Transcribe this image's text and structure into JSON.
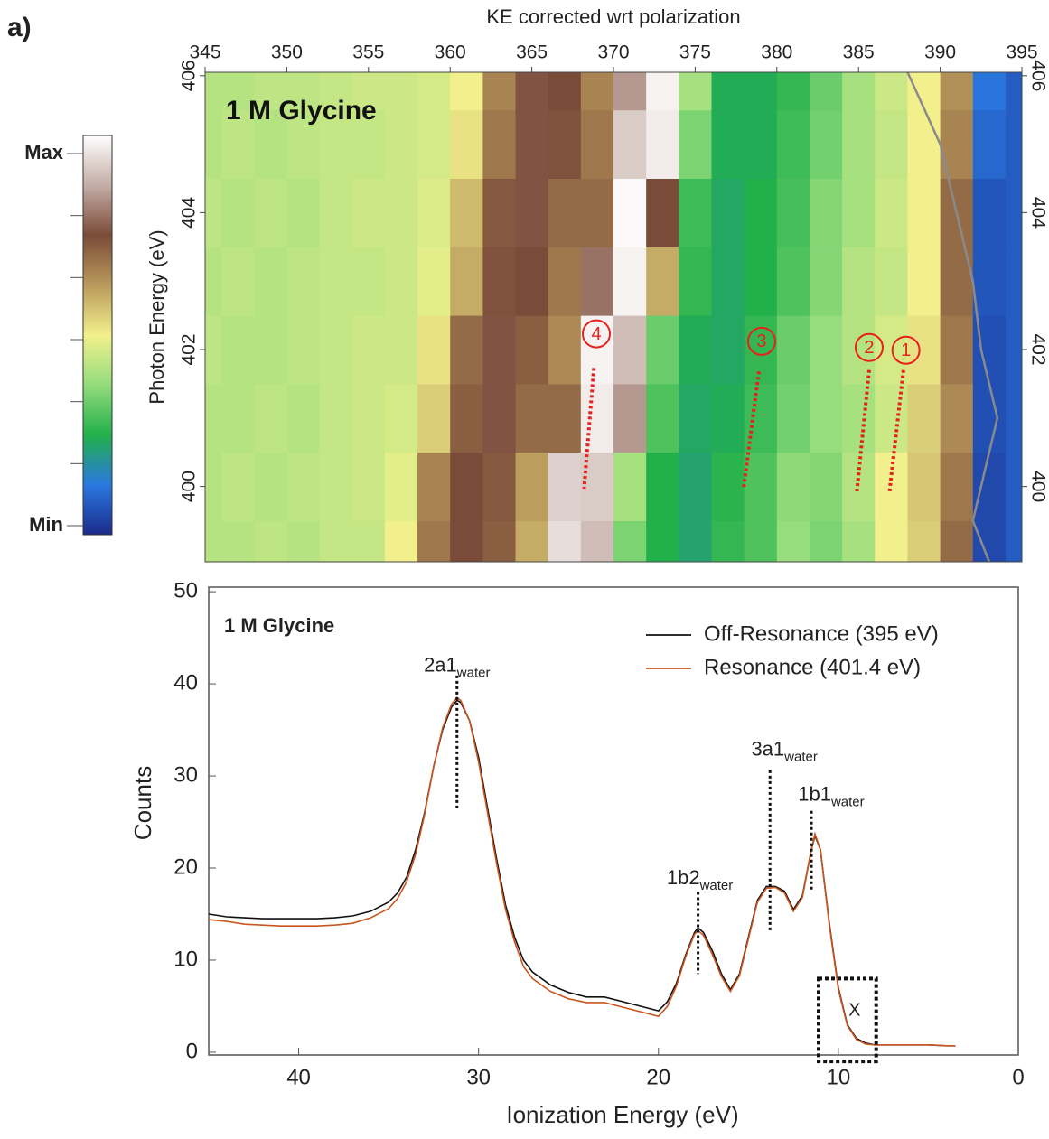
{
  "panel_label": "a)",
  "chart_data": [
    {
      "type": "heatmap",
      "title": "1 M Glycine",
      "x_label": "KE corrected wrt polarization",
      "y_label": "Photon Energy (eV)",
      "x": [
        345,
        347,
        349,
        351,
        353,
        355,
        357,
        359,
        361,
        363,
        365,
        367,
        369,
        371,
        373,
        375,
        377,
        379,
        381,
        383,
        385,
        387,
        389,
        391,
        393,
        395
      ],
      "y": [
        399,
        400,
        401,
        402,
        403,
        404,
        405,
        406
      ],
      "z": [
        [
          0.42,
          0.42,
          0.43,
          0.42,
          0.44,
          0.44,
          0.5,
          0.68,
          0.75,
          0.72,
          0.6,
          0.95,
          0.9,
          0.35,
          0.25,
          0.22,
          0.27,
          0.3,
          0.38,
          0.35,
          0.4,
          0.5,
          0.55,
          0.7,
          0.05,
          0.08
        ],
        [
          0.42,
          0.43,
          0.42,
          0.43,
          0.44,
          0.45,
          0.48,
          0.66,
          0.75,
          0.73,
          0.62,
          0.93,
          0.92,
          0.4,
          0.25,
          0.22,
          0.26,
          0.3,
          0.37,
          0.36,
          0.42,
          0.5,
          0.56,
          0.68,
          0.05,
          0.08
        ],
        [
          0.42,
          0.42,
          0.43,
          0.42,
          0.44,
          0.45,
          0.46,
          0.55,
          0.72,
          0.76,
          0.7,
          0.7,
          0.97,
          0.85,
          0.3,
          0.23,
          0.24,
          0.28,
          0.34,
          0.38,
          0.4,
          0.45,
          0.55,
          0.65,
          0.06,
          0.08
        ],
        [
          0.43,
          0.42,
          0.42,
          0.43,
          0.44,
          0.45,
          0.45,
          0.52,
          0.7,
          0.76,
          0.72,
          0.65,
          0.98,
          0.9,
          0.33,
          0.24,
          0.23,
          0.27,
          0.33,
          0.38,
          0.42,
          0.46,
          0.52,
          0.68,
          0.06,
          0.08
        ],
        [
          0.42,
          0.43,
          0.42,
          0.43,
          0.44,
          0.44,
          0.45,
          0.48,
          0.6,
          0.74,
          0.75,
          0.68,
          0.8,
          0.98,
          0.6,
          0.27,
          0.23,
          0.25,
          0.3,
          0.36,
          0.42,
          0.44,
          0.5,
          0.7,
          0.07,
          0.08
        ],
        [
          0.43,
          0.42,
          0.43,
          0.42,
          0.44,
          0.45,
          0.45,
          0.47,
          0.58,
          0.73,
          0.76,
          0.7,
          0.7,
          0.99,
          0.75,
          0.28,
          0.23,
          0.25,
          0.29,
          0.36,
          0.4,
          0.45,
          0.5,
          0.7,
          0.07,
          0.08
        ],
        [
          0.42,
          0.43,
          0.42,
          0.43,
          0.44,
          0.44,
          0.45,
          0.46,
          0.52,
          0.68,
          0.76,
          0.74,
          0.68,
          0.92,
          0.97,
          0.35,
          0.24,
          0.24,
          0.28,
          0.34,
          0.4,
          0.44,
          0.5,
          0.66,
          0.1,
          0.08
        ],
        [
          0.42,
          0.42,
          0.43,
          0.43,
          0.44,
          0.45,
          0.45,
          0.46,
          0.5,
          0.66,
          0.76,
          0.75,
          0.66,
          0.85,
          0.98,
          0.4,
          0.24,
          0.24,
          0.27,
          0.33,
          0.4,
          0.45,
          0.5,
          0.64,
          0.12,
          0.08
        ]
      ],
      "colormap": [
        "#1b2a8a",
        "#2a78e0",
        "#22b04a",
        "#93dc7c",
        "#f2f08c",
        "#b99a5c",
        "#7b4b39",
        "#c4ada6",
        "#ffffff"
      ],
      "clim": [
        0,
        1
      ],
      "colorbar_ticks": [
        {
          "value": 1,
          "label": "Max"
        },
        {
          "value": 0,
          "label": "Min"
        }
      ],
      "xlim": [
        345,
        395
      ],
      "xticks": [
        345,
        350,
        355,
        360,
        365,
        370,
        375,
        380,
        385,
        390,
        395
      ],
      "ylim": [
        398.9,
        406.05
      ],
      "yticks": [
        400,
        402,
        404,
        406
      ],
      "y2ticks": [
        400,
        402,
        404,
        406
      ],
      "overlay": {
        "color": "#8a8a8a",
        "x": [
          388,
          390,
          391,
          392,
          392.5,
          393.5,
          392.5,
          392,
          393
        ],
        "y": [
          406.05,
          405,
          404,
          403,
          402,
          401,
          400,
          399.5,
          398.9
        ]
      },
      "annotations": [
        {
          "label": "4",
          "x": 368.95,
          "y": 402.23,
          "line_x": [
            368.8,
            368.2
          ],
          "line_y": [
            401.73,
            399.97
          ]
        },
        {
          "label": "3",
          "x": 379.07,
          "y": 402.12,
          "line_x": [
            378.9,
            377.96
          ],
          "line_y": [
            401.68,
            399.97
          ]
        },
        {
          "label": "2",
          "x": 385.65,
          "y": 402.03,
          "line_x": [
            385.65,
            384.9
          ],
          "line_y": [
            401.7,
            399.93
          ]
        },
        {
          "label": "1",
          "x": 387.9,
          "y": 401.99,
          "line_x": [
            387.75,
            386.9
          ],
          "line_y": [
            401.7,
            399.93
          ]
        }
      ],
      "annotation_color": "#e8201c"
    },
    {
      "type": "line",
      "title": "1 M Glycine",
      "x_label": "Ionization Energy (eV)",
      "y_label": "Counts",
      "xlim": [
        45,
        0
      ],
      "xticks": [
        40,
        30,
        20,
        10,
        0
      ],
      "ylim": [
        -0.3,
        50.5
      ],
      "yticks": [
        0,
        10,
        20,
        30,
        40,
        50
      ],
      "legend": "upper right",
      "x": [
        45,
        44,
        43,
        42,
        41,
        40,
        39,
        38,
        37,
        36,
        35,
        34.5,
        34,
        33.5,
        33,
        32.5,
        32,
        31.5,
        31.2,
        31,
        30.5,
        30,
        29.5,
        29,
        28.5,
        28,
        27.5,
        27,
        26,
        25,
        24,
        23,
        22,
        21,
        20,
        19.5,
        19,
        18.5,
        18,
        17.8,
        17.5,
        17,
        16.5,
        16,
        15.5,
        15,
        14.5,
        14,
        13.5,
        13,
        12.5,
        12,
        11.5,
        11.3,
        11,
        10.5,
        10,
        9.5,
        9,
        8.5,
        8,
        7,
        6,
        5,
        4,
        3.5
      ],
      "series": [
        {
          "name": "Off-Resonance (395 eV)",
          "color": "#111111",
          "values": [
            15,
            14.7,
            14.6,
            14.5,
            14.5,
            14.5,
            14.5,
            14.6,
            14.8,
            15.3,
            16.3,
            17.3,
            19,
            22,
            26,
            31,
            35,
            37.5,
            38.2,
            38,
            36,
            32,
            26.5,
            21,
            16,
            12.5,
            10,
            8.7,
            7.3,
            6.5,
            6,
            6,
            5.5,
            5,
            4.5,
            5.5,
            7.5,
            10.5,
            13,
            13.5,
            13,
            11,
            8.5,
            6.8,
            8.5,
            12.5,
            16.5,
            18,
            18,
            17.5,
            15.5,
            17,
            22,
            23.5,
            22,
            14,
            7,
            3,
            1.5,
            1,
            0.8,
            0.8,
            0.8,
            0.8,
            0.7,
            0.7
          ]
        },
        {
          "name": "Resonance (401.4 eV)",
          "color": "#c8561e",
          "values": [
            14.4,
            14.2,
            13.9,
            13.8,
            13.7,
            13.7,
            13.7,
            13.8,
            14,
            14.6,
            15.6,
            16.7,
            18.5,
            21.5,
            25.8,
            31,
            35.2,
            37.8,
            38.5,
            38.2,
            36,
            31.5,
            26,
            20.5,
            15.5,
            12,
            9.3,
            8,
            6.6,
            5.8,
            5.4,
            5.4,
            4.9,
            4.4,
            3.9,
            5,
            7.2,
            10.3,
            12.8,
            13.2,
            12.7,
            10.6,
            8.2,
            6.6,
            8.3,
            12.3,
            16.3,
            17.8,
            17.9,
            17.3,
            15.3,
            16.8,
            22,
            23.7,
            22,
            13.8,
            6.8,
            2.9,
            1.4,
            0.9,
            0.8,
            0.8,
            0.8,
            0.8,
            0.7,
            0.7
          ]
        }
      ],
      "peaks": [
        {
          "text": "2a1",
          "sub": "water",
          "x": 31.2,
          "label_x": 31.2,
          "label_y": 41.9,
          "y_top": 40.9,
          "y_bottom": 26.2
        },
        {
          "text": "1b2",
          "sub": "water",
          "x": 17.8,
          "label_x": 17.7,
          "label_y": 18.8,
          "y_top": 17.4,
          "y_bottom": 8.5
        },
        {
          "text": "3a1",
          "sub": "water",
          "x": 13.8,
          "label_x": 13.0,
          "label_y": 32.8,
          "y_top": 30.6,
          "y_bottom": 13.2
        },
        {
          "text": "1b1",
          "sub": "water",
          "x": 11.5,
          "label_x": 10.4,
          "label_y": 27.9,
          "y_top": 26.2,
          "y_bottom": 17.6
        }
      ],
      "box": {
        "label": "X",
        "x": [
          11.1,
          7.9
        ],
        "y": [
          -1,
          8
        ],
        "label_y": 4.5
      }
    }
  ]
}
